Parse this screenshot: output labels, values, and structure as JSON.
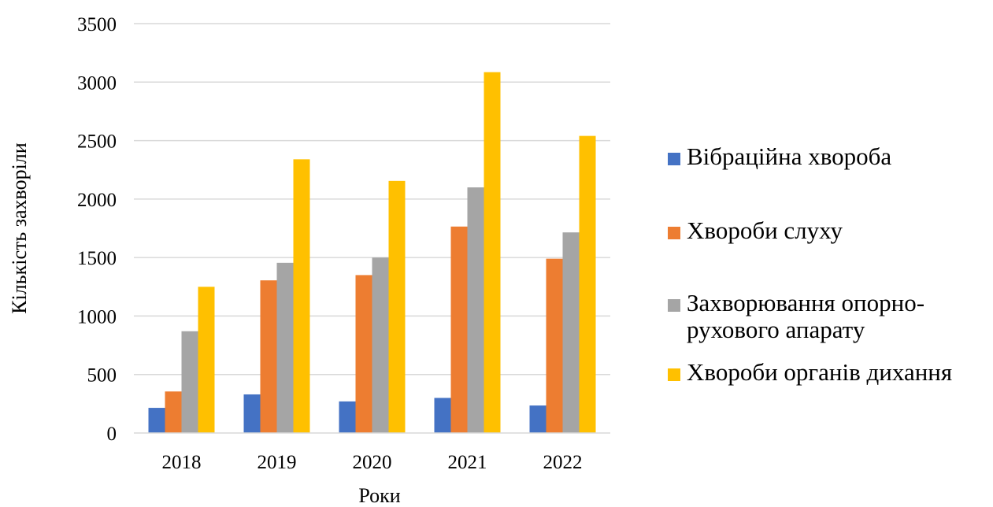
{
  "chart_data": {
    "type": "bar",
    "xlabel": "Роки",
    "ylabel": "Кількість захворіли",
    "ylim": [
      0,
      3500
    ],
    "yticks": [
      0,
      500,
      1000,
      1500,
      2000,
      2500,
      3000,
      3500
    ],
    "grid": true,
    "legend_position": "right",
    "categories": [
      "2018",
      "2019",
      "2020",
      "2021",
      "2022"
    ],
    "series": [
      {
        "name": "Вібраційна хвороба",
        "color": "#4472C4",
        "values": [
          215,
          330,
          270,
          300,
          235
        ]
      },
      {
        "name": "Хвороби слуху",
        "color": "#ED7D31",
        "values": [
          355,
          1305,
          1350,
          1765,
          1490
        ]
      },
      {
        "name": "Захворювання опорно-рухового апарату",
        "color": "#A5A5A5",
        "values": [
          870,
          1455,
          1500,
          2100,
          1715
        ]
      },
      {
        "name": "Хвороби органів дихання",
        "color": "#FFC000",
        "values": [
          1250,
          2340,
          2155,
          3085,
          2540
        ]
      }
    ]
  }
}
